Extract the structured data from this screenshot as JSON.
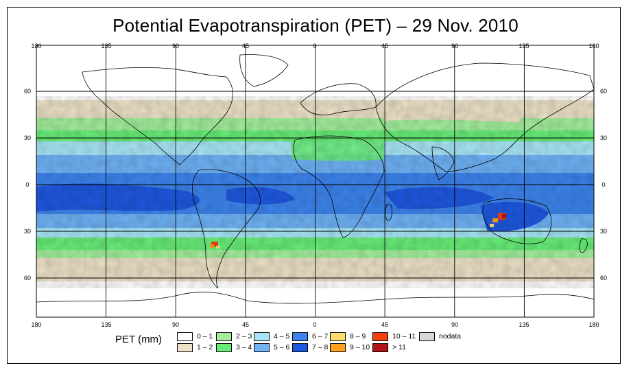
{
  "title": "Potential Evapotranspiration (PET) – 29 Nov. 2010",
  "legend": {
    "title": "PET (mm)",
    "items": [
      {
        "label": "0 – 1",
        "color": "#ffffff"
      },
      {
        "label": "1 – 2",
        "color": "#ede1c7"
      },
      {
        "label": "2 – 3",
        "color": "#a3ef9d"
      },
      {
        "label": "3 – 4",
        "color": "#68ee78"
      },
      {
        "label": "4 – 5",
        "color": "#a8e6f7"
      },
      {
        "label": "5 – 6",
        "color": "#6fb2f6"
      },
      {
        "label": "6 – 7",
        "color": "#3d84ee"
      },
      {
        "label": "7 – 8",
        "color": "#1f58e0"
      },
      {
        "label": "8 – 9",
        "color": "#ffdc6e"
      },
      {
        "label": "9 – 10",
        "color": "#ffa11a"
      },
      {
        "label": "10 – 11",
        "color": "#f2400f"
      },
      {
        "label": "> 11",
        "color": "#b11518"
      },
      {
        "label": "nodata",
        "color": "#d7d7d7"
      }
    ]
  },
  "longitude_labels": [
    "180",
    "135",
    "90",
    "45",
    "0",
    "45",
    "90",
    "135",
    "180"
  ],
  "latitude_labels": [
    "60",
    "30",
    "0",
    "30",
    "60"
  ],
  "colors": {
    "grid": "#000000",
    "coast": "#000000"
  }
}
